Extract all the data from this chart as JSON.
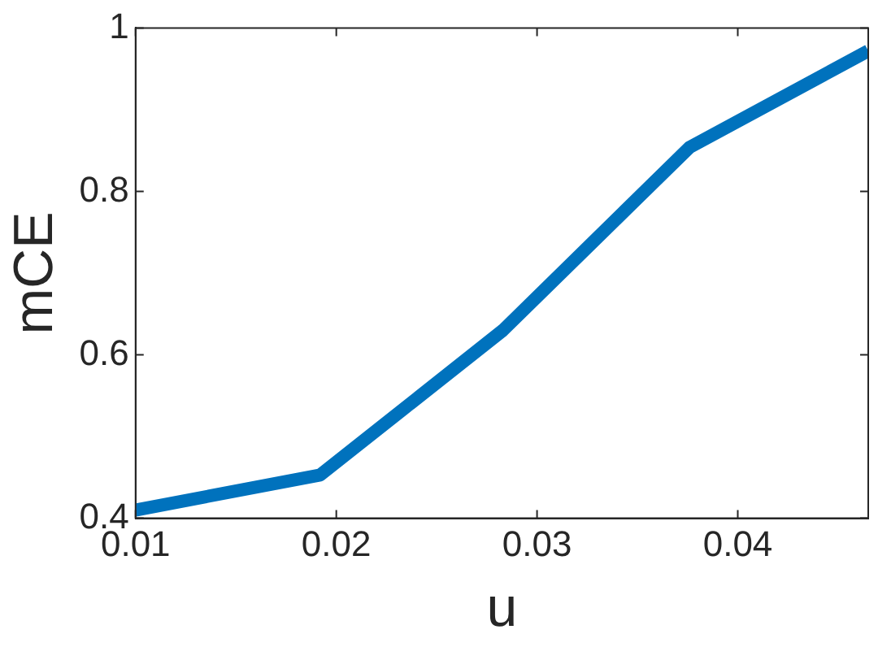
{
  "chart_data": {
    "type": "line",
    "xlabel": "u",
    "ylabel": "mCE",
    "x": [
      0.01,
      0.0192,
      0.0283,
      0.0376,
      0.0465
    ],
    "series": [
      {
        "color": "#0072bd",
        "values": [
          0.41,
          0.453,
          0.63,
          0.854,
          0.972
        ]
      }
    ],
    "xlim": [
      0.01,
      0.0465
    ],
    "xticks": [
      0.01,
      0.02,
      0.03,
      0.04
    ],
    "ylim": [
      0.4,
      1
    ],
    "yticks": [
      0.4,
      0.6,
      0.8,
      1
    ],
    "grid": false,
    "legend": false,
    "marker": "none",
    "line_style": "solid"
  }
}
